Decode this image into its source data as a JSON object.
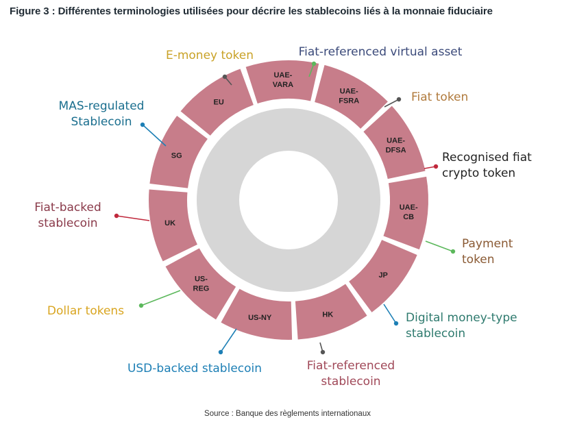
{
  "title": "Figure 3 : Différentes terminologies utilisées pour décrire les stablecoins liés à la monnaie fiduciaire",
  "source": "Source : Banque des règlements internationaux",
  "segments": [
    {
      "id": "uae-vara",
      "lines": [
        "UAE-",
        "VARA"
      ]
    },
    {
      "id": "uae-fsra",
      "lines": [
        "UAE-",
        "FSRA"
      ]
    },
    {
      "id": "uae-dfsa",
      "lines": [
        "UAE-",
        "DFSA"
      ]
    },
    {
      "id": "uae-cb",
      "lines": [
        "UAE-",
        "CB"
      ]
    },
    {
      "id": "jp",
      "lines": [
        "JP"
      ]
    },
    {
      "id": "hk",
      "lines": [
        "HK"
      ]
    },
    {
      "id": "us-ny",
      "lines": [
        "US-NY"
      ]
    },
    {
      "id": "us-reg",
      "lines": [
        "US-",
        "REG"
      ]
    },
    {
      "id": "uk",
      "lines": [
        "UK"
      ]
    },
    {
      "id": "sg",
      "lines": [
        "SG"
      ]
    },
    {
      "id": "eu",
      "lines": [
        "EU"
      ]
    }
  ],
  "terms": [
    {
      "id": "fiat-referenced-virtual-asset",
      "lines": [
        "Fiat-referenced virtual asset"
      ],
      "color": "#3b4a7a",
      "dot": "#5cb85c"
    },
    {
      "id": "fiat-token",
      "lines": [
        "Fiat token"
      ],
      "color": "#b07a3c",
      "dot": "#555555"
    },
    {
      "id": "recognised-fiat-crypto-token",
      "lines": [
        "Recognised fiat",
        "crypto token"
      ],
      "color": "#222222",
      "dot": "#c0283c"
    },
    {
      "id": "payment-token",
      "lines": [
        "Payment",
        "token"
      ],
      "color": "#8a5a34",
      "dot": "#5cb85c"
    },
    {
      "id": "digital-money-type-stablecoin",
      "lines": [
        "Digital money-type",
        "stablecoin"
      ],
      "color": "#2e7a6e",
      "dot": "#1d7fb5"
    },
    {
      "id": "fiat-referenced-stablecoin",
      "lines": [
        "Fiat-referenced",
        "stablecoin"
      ],
      "color": "#a04858",
      "dot": "#555555"
    },
    {
      "id": "usd-backed-stablecoin",
      "lines": [
        "USD-backed stablecoin"
      ],
      "color": "#1d7fb5",
      "dot": "#1d7fb5"
    },
    {
      "id": "dollar-tokens",
      "lines": [
        "Dollar tokens"
      ],
      "color": "#d9a520",
      "dot": "#5cb85c"
    },
    {
      "id": "fiat-backed-stablecoin",
      "lines": [
        "Fiat-backed",
        "stablecoin"
      ],
      "color": "#8a3a4a",
      "dot": "#c0283c"
    },
    {
      "id": "mas-regulated-stablecoin",
      "lines": [
        "MAS-regulated",
        "Stablecoin"
      ],
      "color": "#1a6e8e",
      "dot": "#1d7fb5"
    },
    {
      "id": "e-money-token",
      "lines": [
        "E-money token"
      ],
      "color": "#c9a227",
      "dot": "#555555"
    }
  ]
}
